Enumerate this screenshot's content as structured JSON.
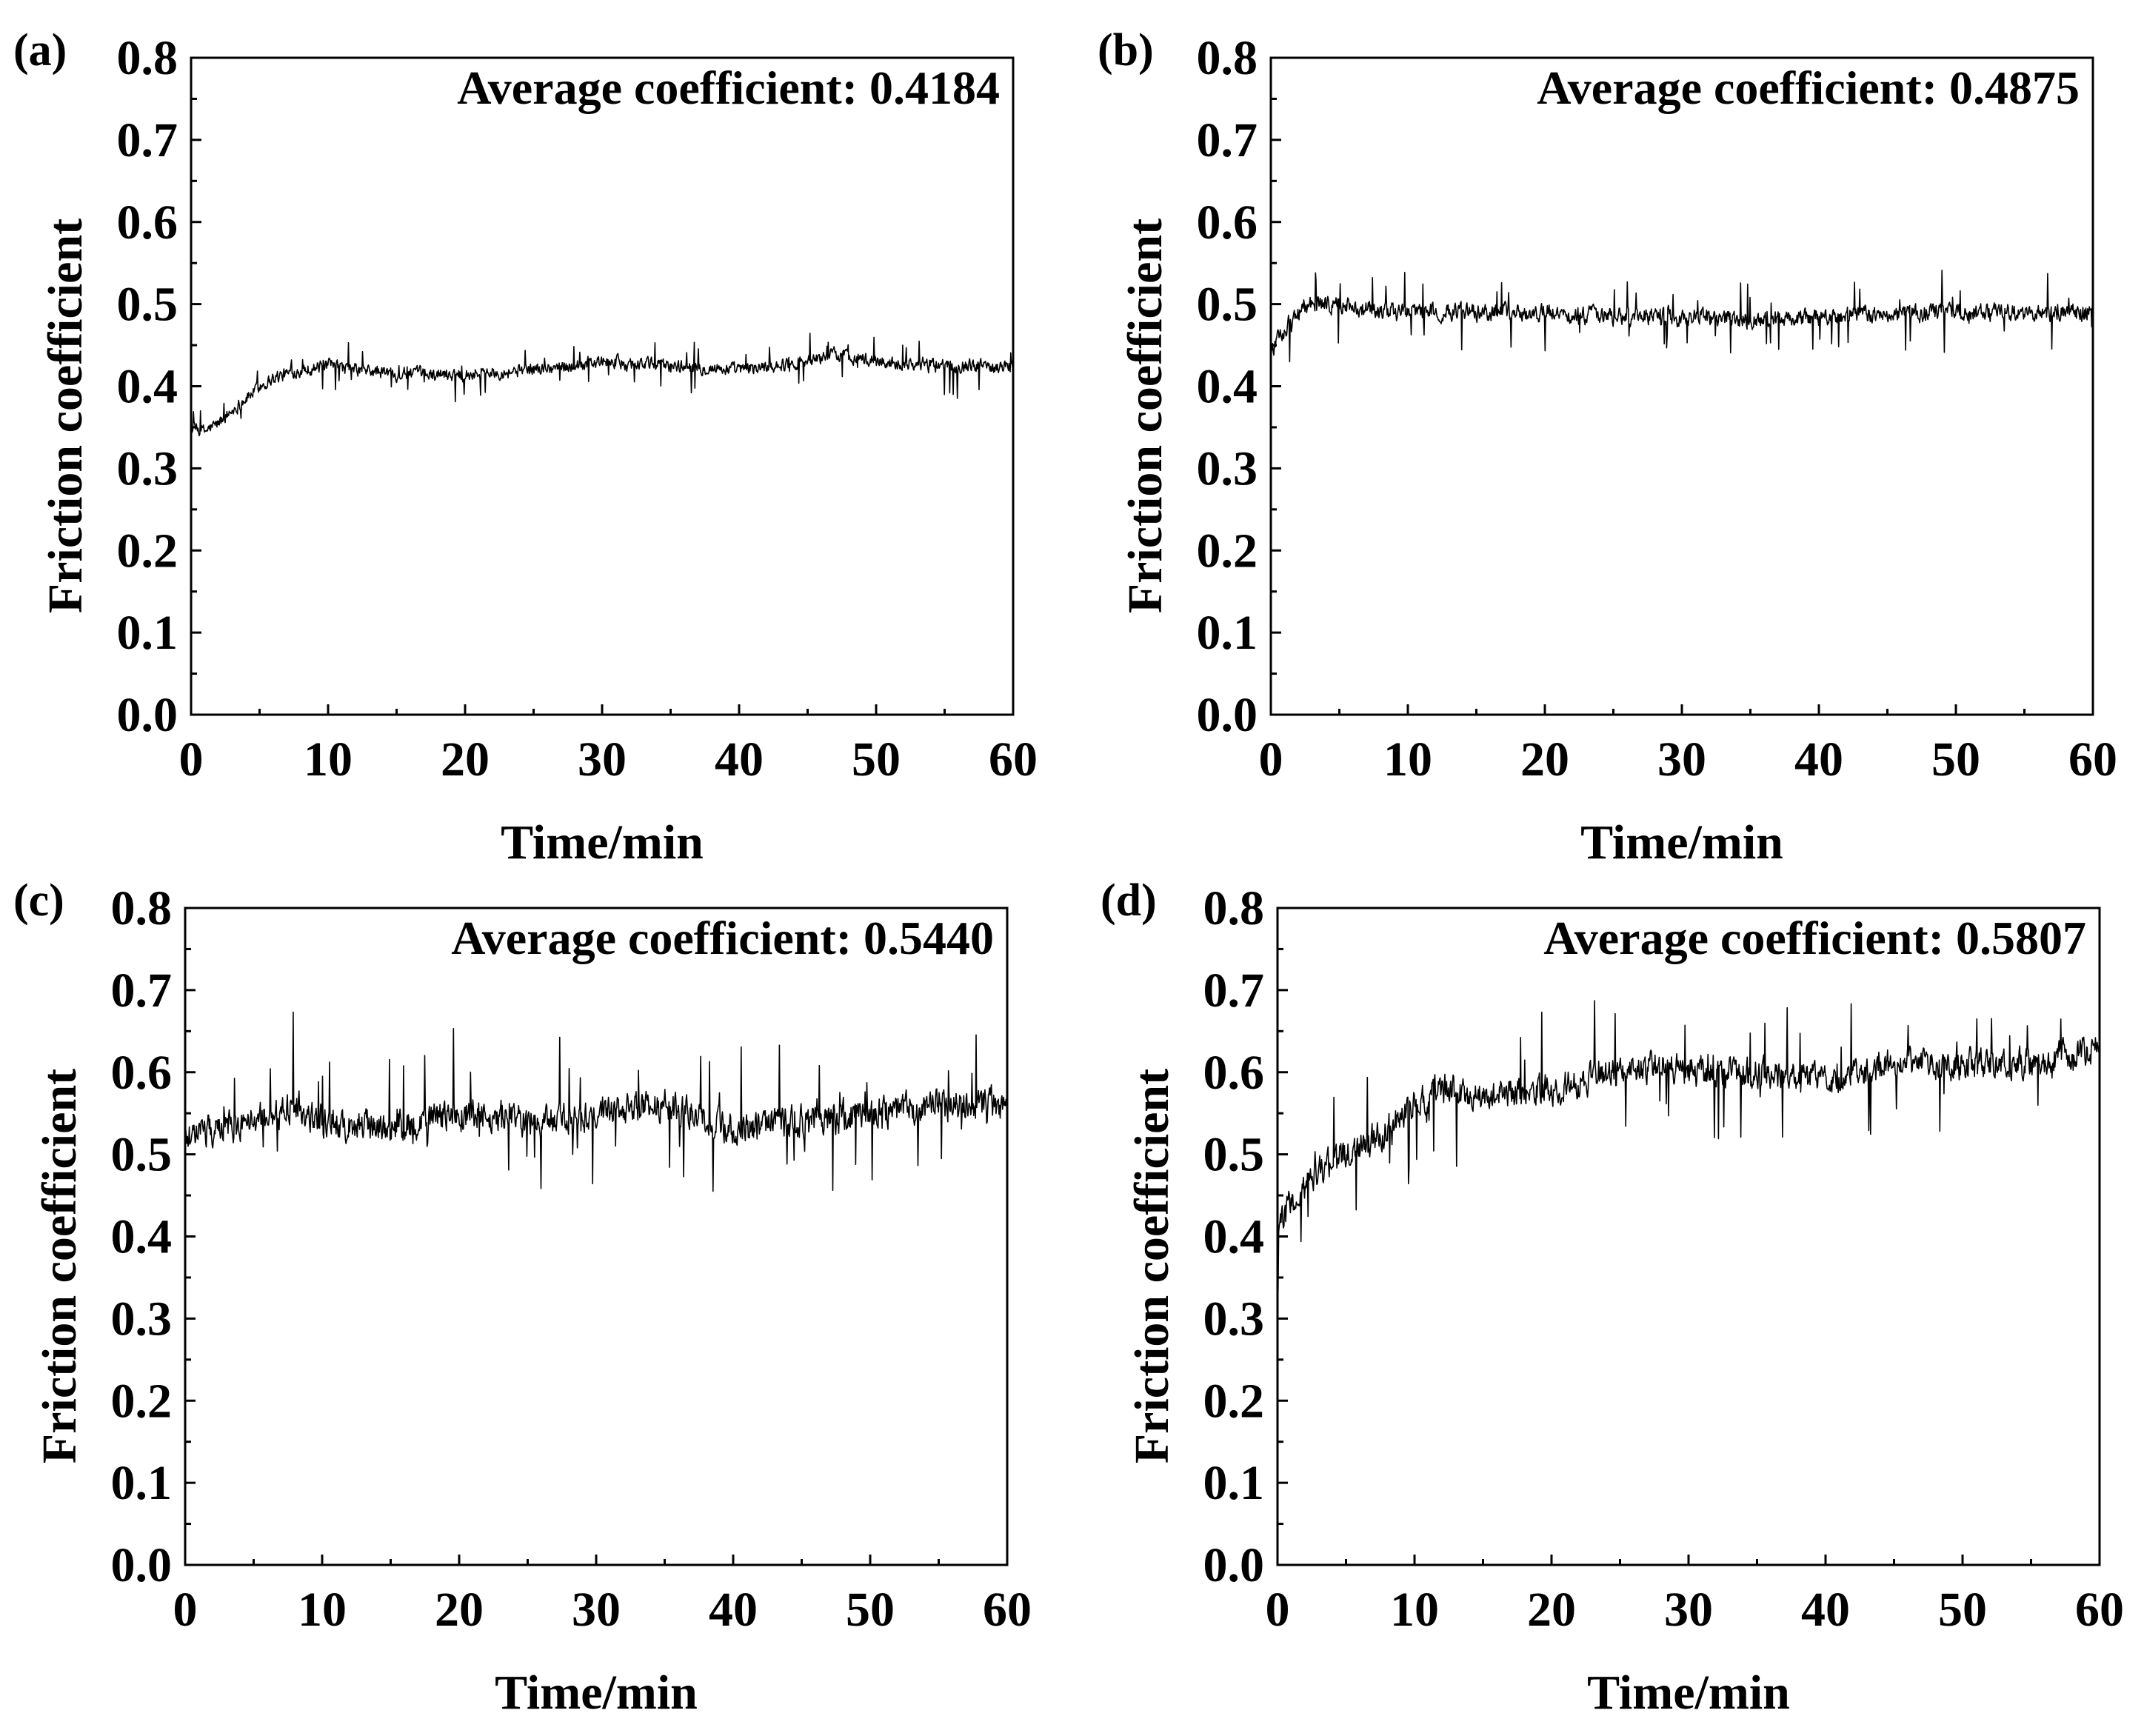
{
  "figure": {
    "line_color": "#000000",
    "background": "#ffffff"
  },
  "chart_data": [
    {
      "type": "line",
      "panel_label": "(a)",
      "annotation": "Average coefficient: 0.4184",
      "xlabel": "Time/min",
      "ylabel": "Friction coefficient",
      "xlim": [
        0,
        60
      ],
      "ylim": [
        0.0,
        0.8
      ],
      "xticks": [
        "0",
        "10",
        "20",
        "30",
        "40",
        "50",
        "60"
      ],
      "yticks": [
        "0.0",
        "0.1",
        "0.2",
        "0.3",
        "0.4",
        "0.5",
        "0.6",
        "0.7",
        "0.8"
      ],
      "trend": {
        "x": [
          0,
          1,
          2,
          3,
          4,
          5,
          6,
          8,
          10,
          12,
          15,
          20,
          25,
          30,
          35,
          40,
          45,
          47,
          50,
          55,
          60
        ],
        "y": [
          0.35,
          0.345,
          0.355,
          0.37,
          0.385,
          0.4,
          0.41,
          0.42,
          0.425,
          0.42,
          0.415,
          0.415,
          0.42,
          0.43,
          0.425,
          0.42,
          0.43,
          0.44,
          0.43,
          0.425,
          0.425
        ]
      },
      "noise": 0.012,
      "spike": 0.035
    },
    {
      "type": "line",
      "panel_label": "(b)",
      "annotation": "Average coefficient: 0.4875",
      "xlabel": "Time/min",
      "ylabel": "Friction coefficient",
      "xlim": [
        0,
        60
      ],
      "ylim": [
        0.0,
        0.8
      ],
      "xticks": [
        "0",
        "10",
        "20",
        "30",
        "40",
        "50",
        "60"
      ],
      "yticks": [
        "0.0",
        "0.1",
        "0.2",
        "0.3",
        "0.4",
        "0.5",
        "0.6",
        "0.7",
        "0.8"
      ],
      "trend": {
        "x": [
          0,
          1,
          2,
          3,
          5,
          8,
          10,
          15,
          20,
          25,
          30,
          35,
          40,
          45,
          50,
          55,
          60
        ],
        "y": [
          0.44,
          0.47,
          0.49,
          0.5,
          0.5,
          0.49,
          0.49,
          0.49,
          0.49,
          0.485,
          0.485,
          0.48,
          0.485,
          0.49,
          0.49,
          0.49,
          0.49
        ]
      },
      "noise": 0.016,
      "spike": 0.05
    },
    {
      "type": "line",
      "panel_label": "(c)",
      "annotation": "Average coefficient: 0.5440",
      "xlabel": "Time/min",
      "ylabel": "Friction coefficient",
      "xlim": [
        0,
        60
      ],
      "ylim": [
        0.0,
        0.8
      ],
      "xticks": [
        "0",
        "10",
        "20",
        "30",
        "40",
        "50",
        "60"
      ],
      "yticks": [
        "0.0",
        "0.1",
        "0.2",
        "0.3",
        "0.4",
        "0.5",
        "0.6",
        "0.7",
        "0.8"
      ],
      "trend": {
        "x": [
          0,
          2,
          5,
          8,
          10,
          15,
          20,
          25,
          30,
          35,
          40,
          45,
          50,
          55,
          60
        ],
        "y": [
          0.52,
          0.53,
          0.54,
          0.56,
          0.54,
          0.53,
          0.55,
          0.54,
          0.55,
          0.56,
          0.53,
          0.54,
          0.55,
          0.56,
          0.56
        ]
      },
      "noise": 0.03,
      "spike": 0.1
    },
    {
      "type": "line",
      "panel_label": "(d)",
      "annotation": "Average coefficient: 0.5807",
      "xlabel": "Time/min",
      "ylabel": "Friction coefficient",
      "xlim": [
        0,
        60
      ],
      "ylim": [
        0.0,
        0.8
      ],
      "xticks": [
        "0",
        "10",
        "20",
        "30",
        "40",
        "50",
        "60"
      ],
      "yticks": [
        "0.0",
        "0.1",
        "0.2",
        "0.3",
        "0.4",
        "0.5",
        "0.6",
        "0.7",
        "0.8"
      ],
      "trend": {
        "x": [
          0,
          1,
          3,
          5,
          8,
          10,
          12,
          15,
          20,
          25,
          28,
          30,
          35,
          40,
          45,
          50,
          55,
          60
        ],
        "y": [
          0.41,
          0.44,
          0.48,
          0.5,
          0.53,
          0.56,
          0.58,
          0.57,
          0.58,
          0.6,
          0.61,
          0.6,
          0.6,
          0.59,
          0.61,
          0.61,
          0.61,
          0.63
        ]
      },
      "noise": 0.028,
      "spike": 0.09
    }
  ]
}
